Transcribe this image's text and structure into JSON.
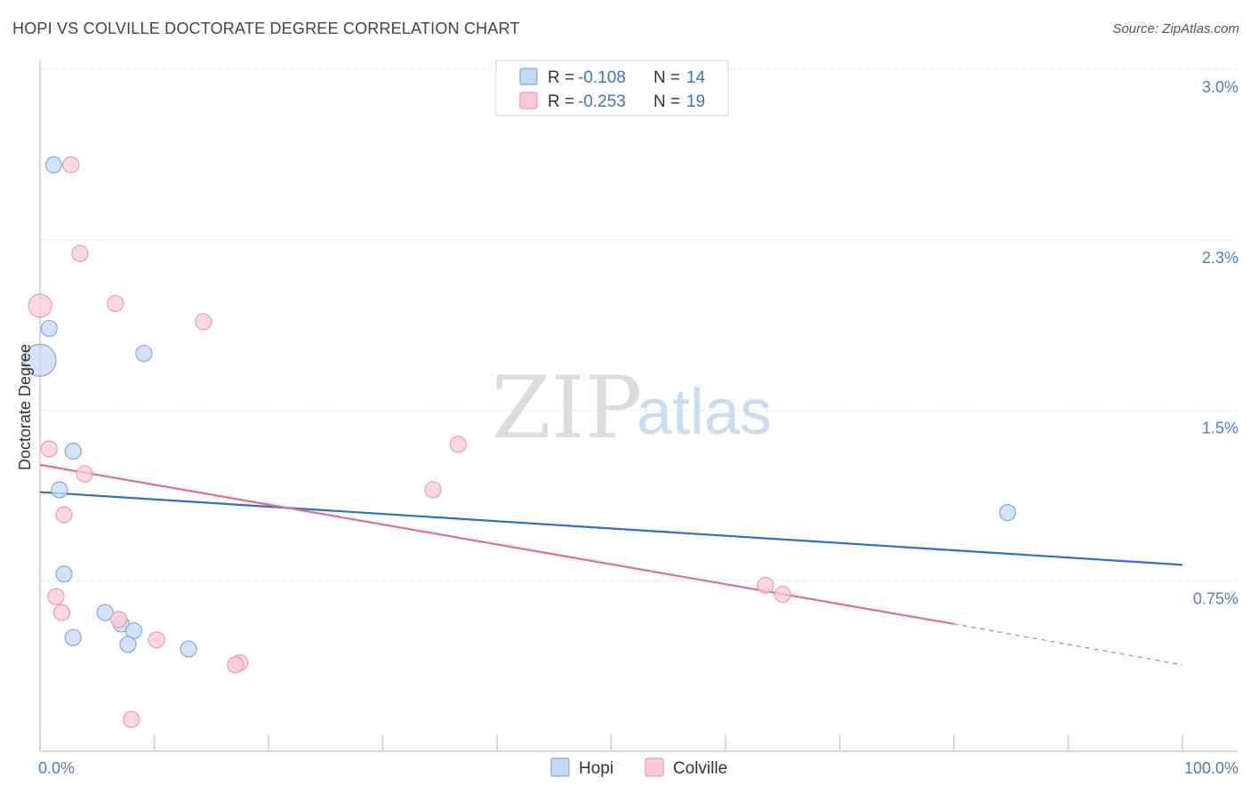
{
  "title": "HOPI VS COLVILLE DOCTORATE DEGREE CORRELATION CHART",
  "source": "Source: ZipAtlas.com",
  "watermark": {
    "zip": "ZIP",
    "atlas": "atlas"
  },
  "chart_data": {
    "type": "scatter",
    "xlabel": "",
    "ylabel": "Doctorate Degree",
    "xlim": [
      0,
      100
    ],
    "ylim": [
      0.0,
      3.0
    ],
    "x_tick_labels": [
      {
        "value": 0,
        "label": "0.0%"
      },
      {
        "value": 100,
        "label": "100.0%"
      }
    ],
    "y_ticks": [
      {
        "value": 0.75,
        "label": "0.75%"
      },
      {
        "value": 1.5,
        "label": "1.5%"
      },
      {
        "value": 2.25,
        "label": "2.3%"
      },
      {
        "value": 3.0,
        "label": "3.0%"
      }
    ],
    "legend": [
      {
        "series": "Hopi",
        "r_label": "R = ",
        "r_value": "-0.108",
        "n_label": "N = ",
        "n_value": "14"
      },
      {
        "series": "Colville",
        "r_label": "R = ",
        "r_value": "-0.253",
        "n_label": "N = ",
        "n_value": "19"
      }
    ],
    "series": [
      {
        "name": "Hopi",
        "color": "#7fa8e0",
        "fill": "#c5d9f4",
        "line_color": "#2a6fce",
        "points": [
          {
            "x": 1.2,
            "y": 2.58,
            "size": 9
          },
          {
            "x": 0.8,
            "y": 1.86,
            "size": 9
          },
          {
            "x": 0.0,
            "y": 1.72,
            "size": 18
          },
          {
            "x": 9.1,
            "y": 1.75,
            "size": 9
          },
          {
            "x": 2.9,
            "y": 1.32,
            "size": 9
          },
          {
            "x": 1.7,
            "y": 1.15,
            "size": 9
          },
          {
            "x": 84.7,
            "y": 1.05,
            "size": 9
          },
          {
            "x": 2.1,
            "y": 0.78,
            "size": 9
          },
          {
            "x": 5.7,
            "y": 0.61,
            "size": 9
          },
          {
            "x": 7.1,
            "y": 0.56,
            "size": 9
          },
          {
            "x": 2.9,
            "y": 0.5,
            "size": 9
          },
          {
            "x": 8.2,
            "y": 0.53,
            "size": 9
          },
          {
            "x": 7.7,
            "y": 0.47,
            "size": 9
          },
          {
            "x": 13.0,
            "y": 0.45,
            "size": 9
          }
        ],
        "trend": {
          "x0": 0,
          "y0": 1.14,
          "x1": 100,
          "y1": 0.82
        }
      },
      {
        "name": "Colville",
        "color": "#ee9ab4",
        "fill": "#f8cad8",
        "line_color": "#e36b95",
        "points": [
          {
            "x": 2.7,
            "y": 2.58,
            "size": 9
          },
          {
            "x": 3.5,
            "y": 2.19,
            "size": 9
          },
          {
            "x": 0.0,
            "y": 1.96,
            "size": 13
          },
          {
            "x": 6.6,
            "y": 1.97,
            "size": 9
          },
          {
            "x": 14.3,
            "y": 1.89,
            "size": 9
          },
          {
            "x": 0.8,
            "y": 1.33,
            "size": 9
          },
          {
            "x": 3.9,
            "y": 1.22,
            "size": 9
          },
          {
            "x": 36.6,
            "y": 1.35,
            "size": 9
          },
          {
            "x": 34.4,
            "y": 1.15,
            "size": 9
          },
          {
            "x": 2.1,
            "y": 1.04,
            "size": 9
          },
          {
            "x": 63.5,
            "y": 0.73,
            "size": 9
          },
          {
            "x": 65.0,
            "y": 0.69,
            "size": 9
          },
          {
            "x": 1.4,
            "y": 0.68,
            "size": 9
          },
          {
            "x": 1.9,
            "y": 0.61,
            "size": 9
          },
          {
            "x": 6.9,
            "y": 0.58,
            "size": 9
          },
          {
            "x": 10.2,
            "y": 0.49,
            "size": 9
          },
          {
            "x": 17.5,
            "y": 0.39,
            "size": 9
          },
          {
            "x": 17.1,
            "y": 0.38,
            "size": 9
          },
          {
            "x": 8.0,
            "y": 0.14,
            "size": 9
          }
        ],
        "trend": {
          "x0": 0,
          "y0": 1.26,
          "x1": 80,
          "y1": 0.56,
          "dash_to_x": 100,
          "dash_to_y": 0.38
        }
      }
    ]
  }
}
